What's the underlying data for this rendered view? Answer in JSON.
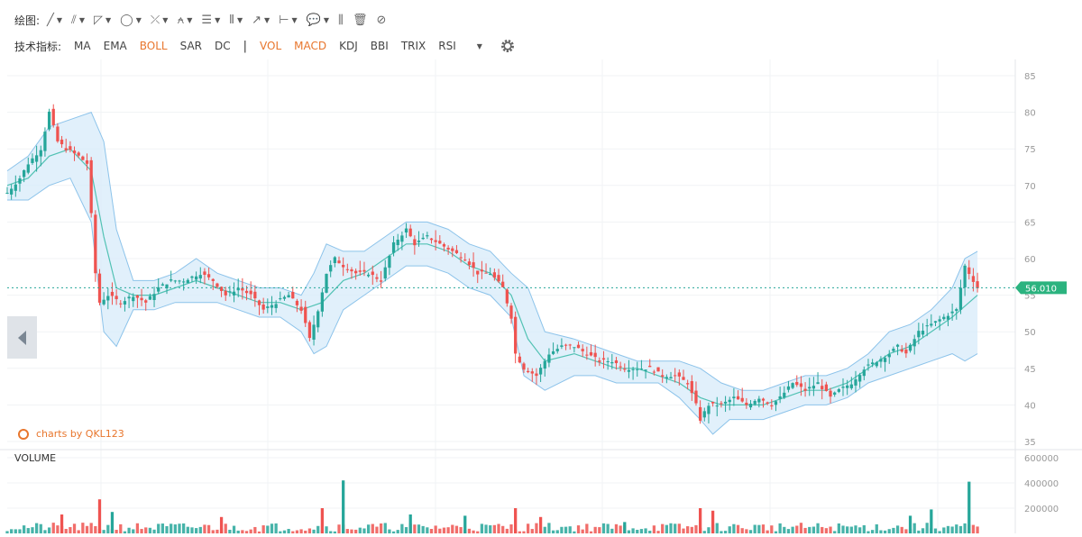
{
  "draw_toolbar": {
    "label": "绘图:",
    "tools": [
      {
        "icon": "line-icon",
        "glyph": "╱",
        "dropdown": true
      },
      {
        "icon": "pen-line-icon",
        "glyph": "⫽",
        "dropdown": true
      },
      {
        "icon": "channel-icon",
        "glyph": "◸",
        "dropdown": true
      },
      {
        "icon": "circle-icon",
        "glyph": "◯",
        "dropdown": true
      },
      {
        "icon": "zigzag-icon",
        "glyph": "⤫",
        "dropdown": true
      },
      {
        "icon": "pattern-icon",
        "glyph": "⍲",
        "dropdown": true
      },
      {
        "icon": "fibonacci-icon",
        "glyph": "☰",
        "dropdown": true
      },
      {
        "icon": "gann-icon",
        "glyph": "⦀",
        "dropdown": true
      },
      {
        "icon": "arrow-icon",
        "glyph": "↗",
        "dropdown": true
      },
      {
        "icon": "range-icon",
        "glyph": "⊢",
        "dropdown": true
      },
      {
        "icon": "comment-icon",
        "glyph": "💬",
        "dropdown": true
      },
      {
        "icon": "bars-pattern-icon",
        "glyph": "⫼",
        "dropdown": false
      },
      {
        "icon": "trash-icon",
        "glyph": "🗑",
        "dropdown": false
      },
      {
        "icon": "hide-drawings-icon",
        "glyph": "⊘",
        "dropdown": false
      }
    ]
  },
  "indicator_toolbar": {
    "label": "技术指标:",
    "main_indicators": [
      {
        "label": "MA",
        "active": false
      },
      {
        "label": "EMA",
        "active": false
      },
      {
        "label": "BOLL",
        "active": true
      },
      {
        "label": "SAR",
        "active": false
      },
      {
        "label": "DC",
        "active": false
      }
    ],
    "separator": "|",
    "sub_indicators": [
      {
        "label": "VOL",
        "active": true
      },
      {
        "label": "MACD",
        "active": true
      },
      {
        "label": "KDJ",
        "active": false
      },
      {
        "label": "BBI",
        "active": false
      },
      {
        "label": "TRIX",
        "active": false
      },
      {
        "label": "RSI",
        "active": false
      }
    ]
  },
  "watermark": "charts by QKL123",
  "colors": {
    "up": "#26a69a",
    "down": "#ef5350",
    "boll_fill": "#d7ebfa",
    "boll_band": "#8cc3ea",
    "boll_mid": "#52c2b4",
    "price_line": "#26a69a",
    "accent": "#e8762d"
  },
  "chart_data": [
    {
      "type": "candlestick",
      "title": "",
      "indicator": "BOLL",
      "y_ticks": [
        "85",
        "80",
        "75",
        "70",
        "65",
        "60",
        "55",
        "50",
        "45",
        "40",
        "35"
      ],
      "ylim": [
        35,
        85
      ],
      "current_price": "56.010",
      "grid": true,
      "price_path": [
        [
          0,
          69
        ],
        [
          3,
          71
        ],
        [
          5,
          73
        ],
        [
          8,
          75
        ],
        [
          10,
          80
        ],
        [
          12,
          76
        ],
        [
          14,
          75
        ],
        [
          17,
          74
        ],
        [
          19,
          73
        ],
        [
          20,
          66
        ],
        [
          21,
          58
        ],
        [
          22,
          54
        ],
        [
          24,
          55
        ],
        [
          27,
          54
        ],
        [
          30,
          55
        ],
        [
          33,
          54
        ],
        [
          36,
          56
        ],
        [
          39,
          57
        ],
        [
          42,
          57
        ],
        [
          46,
          58
        ],
        [
          49,
          57
        ],
        [
          52,
          55
        ],
        [
          55,
          56
        ],
        [
          58,
          55
        ],
        [
          61,
          53
        ],
        [
          64,
          54
        ],
        [
          67,
          55
        ],
        [
          70,
          53
        ],
        [
          72,
          49
        ],
        [
          74,
          53
        ],
        [
          76,
          58
        ],
        [
          78,
          60
        ],
        [
          80,
          59
        ],
        [
          83,
          58
        ],
        [
          86,
          58
        ],
        [
          89,
          57
        ],
        [
          92,
          62
        ],
        [
          95,
          64
        ],
        [
          97,
          62
        ],
        [
          100,
          63
        ],
        [
          103,
          62
        ],
        [
          106,
          61
        ],
        [
          109,
          60
        ],
        [
          112,
          58
        ],
        [
          115,
          58
        ],
        [
          118,
          56
        ],
        [
          120,
          52
        ],
        [
          121,
          47
        ],
        [
          123,
          45
        ],
        [
          126,
          44
        ],
        [
          129,
          47
        ],
        [
          132,
          48
        ],
        [
          135,
          48
        ],
        [
          138,
          47
        ],
        [
          141,
          46
        ],
        [
          144,
          46
        ],
        [
          147,
          45
        ],
        [
          150,
          45
        ],
        [
          153,
          45
        ],
        [
          156,
          44
        ],
        [
          159,
          44
        ],
        [
          162,
          43
        ],
        [
          164,
          40
        ],
        [
          165,
          38
        ],
        [
          167,
          40
        ],
        [
          170,
          40
        ],
        [
          173,
          41
        ],
        [
          176,
          40
        ],
        [
          179,
          41
        ],
        [
          182,
          40
        ],
        [
          184,
          41
        ],
        [
          187,
          43
        ],
        [
          190,
          42
        ],
        [
          193,
          43
        ],
        [
          196,
          41
        ],
        [
          198,
          42
        ],
        [
          201,
          43
        ],
        [
          204,
          45
        ],
        [
          207,
          46
        ],
        [
          210,
          47
        ],
        [
          212,
          48
        ],
        [
          214,
          47
        ],
        [
          217,
          50
        ],
        [
          220,
          51
        ],
        [
          223,
          52
        ],
        [
          226,
          53
        ],
        [
          228,
          59
        ],
        [
          230,
          57
        ],
        [
          231,
          56
        ]
      ],
      "boll_mid_path": [
        [
          0,
          70
        ],
        [
          5,
          71
        ],
        [
          10,
          74
        ],
        [
          15,
          75
        ],
        [
          20,
          72
        ],
        [
          23,
          63
        ],
        [
          26,
          56
        ],
        [
          30,
          55
        ],
        [
          35,
          55
        ],
        [
          40,
          56
        ],
        [
          45,
          57
        ],
        [
          50,
          56
        ],
        [
          55,
          55
        ],
        [
          60,
          54
        ],
        [
          65,
          54
        ],
        [
          70,
          53
        ],
        [
          75,
          54
        ],
        [
          80,
          57
        ],
        [
          85,
          58
        ],
        [
          90,
          60
        ],
        [
          95,
          62
        ],
        [
          100,
          62
        ],
        [
          105,
          61
        ],
        [
          110,
          59
        ],
        [
          115,
          58
        ],
        [
          120,
          55
        ],
        [
          124,
          49
        ],
        [
          128,
          46
        ],
        [
          135,
          47
        ],
        [
          140,
          46
        ],
        [
          145,
          45
        ],
        [
          150,
          45
        ],
        [
          155,
          44
        ],
        [
          160,
          43
        ],
        [
          165,
          41
        ],
        [
          170,
          40
        ],
        [
          175,
          40
        ],
        [
          180,
          40
        ],
        [
          185,
          41
        ],
        [
          190,
          42
        ],
        [
          195,
          42
        ],
        [
          200,
          43
        ],
        [
          205,
          45
        ],
        [
          210,
          47
        ],
        [
          215,
          48
        ],
        [
          220,
          50
        ],
        [
          225,
          52
        ],
        [
          231,
          55
        ]
      ],
      "boll_upper_path": [
        [
          0,
          72
        ],
        [
          5,
          74
        ],
        [
          10,
          78
        ],
        [
          15,
          79
        ],
        [
          20,
          80
        ],
        [
          23,
          76
        ],
        [
          26,
          64
        ],
        [
          30,
          57
        ],
        [
          35,
          57
        ],
        [
          40,
          58
        ],
        [
          45,
          60
        ],
        [
          50,
          58
        ],
        [
          55,
          57
        ],
        [
          60,
          56
        ],
        [
          65,
          56
        ],
        [
          70,
          55
        ],
        [
          73,
          58
        ],
        [
          76,
          62
        ],
        [
          80,
          61
        ],
        [
          85,
          61
        ],
        [
          90,
          63
        ],
        [
          95,
          65
        ],
        [
          100,
          65
        ],
        [
          105,
          64
        ],
        [
          110,
          62
        ],
        [
          115,
          61
        ],
        [
          120,
          58
        ],
        [
          124,
          56
        ],
        [
          128,
          50
        ],
        [
          135,
          49
        ],
        [
          140,
          48
        ],
        [
          145,
          47
        ],
        [
          150,
          46
        ],
        [
          155,
          46
        ],
        [
          160,
          46
        ],
        [
          165,
          45
        ],
        [
          170,
          43
        ],
        [
          175,
          42
        ],
        [
          180,
          42
        ],
        [
          185,
          43
        ],
        [
          190,
          44
        ],
        [
          195,
          44
        ],
        [
          200,
          45
        ],
        [
          205,
          47
        ],
        [
          210,
          50
        ],
        [
          215,
          51
        ],
        [
          220,
          53
        ],
        [
          225,
          56
        ],
        [
          228,
          60
        ],
        [
          231,
          61
        ]
      ],
      "boll_lower_path": [
        [
          0,
          68
        ],
        [
          5,
          68
        ],
        [
          10,
          70
        ],
        [
          15,
          71
        ],
        [
          20,
          65
        ],
        [
          23,
          50
        ],
        [
          26,
          48
        ],
        [
          30,
          53
        ],
        [
          35,
          53
        ],
        [
          40,
          54
        ],
        [
          45,
          54
        ],
        [
          50,
          54
        ],
        [
          55,
          53
        ],
        [
          60,
          52
        ],
        [
          65,
          52
        ],
        [
          70,
          50
        ],
        [
          73,
          47
        ],
        [
          76,
          48
        ],
        [
          80,
          53
        ],
        [
          85,
          55
        ],
        [
          90,
          57
        ],
        [
          95,
          59
        ],
        [
          100,
          59
        ],
        [
          105,
          58
        ],
        [
          110,
          56
        ],
        [
          115,
          55
        ],
        [
          120,
          52
        ],
        [
          123,
          44
        ],
        [
          128,
          42
        ],
        [
          135,
          44
        ],
        [
          140,
          44
        ],
        [
          145,
          43
        ],
        [
          150,
          43
        ],
        [
          155,
          43
        ],
        [
          160,
          41
        ],
        [
          165,
          38
        ],
        [
          168,
          36
        ],
        [
          172,
          38
        ],
        [
          175,
          38
        ],
        [
          180,
          38
        ],
        [
          185,
          39
        ],
        [
          190,
          40
        ],
        [
          195,
          40
        ],
        [
          200,
          41
        ],
        [
          205,
          43
        ],
        [
          210,
          44
        ],
        [
          215,
          45
        ],
        [
          220,
          46
        ],
        [
          225,
          47
        ],
        [
          228,
          46
        ],
        [
          231,
          47
        ]
      ]
    },
    {
      "type": "bar",
      "title": "VOLUME",
      "y_ticks": [
        "600000",
        "400000",
        "200000"
      ],
      "ylim": [
        0,
        600000
      ],
      "spikes": [
        {
          "x": 13,
          "value": 150000,
          "dir": "down"
        },
        {
          "x": 22,
          "value": 270000,
          "dir": "down"
        },
        {
          "x": 25,
          "value": 170000,
          "dir": "up"
        },
        {
          "x": 51,
          "value": 130000,
          "dir": "down"
        },
        {
          "x": 75,
          "value": 200000,
          "dir": "down"
        },
        {
          "x": 80,
          "value": 420000,
          "dir": "up"
        },
        {
          "x": 96,
          "value": 150000,
          "dir": "up"
        },
        {
          "x": 109,
          "value": 140000,
          "dir": "up"
        },
        {
          "x": 121,
          "value": 200000,
          "dir": "down"
        },
        {
          "x": 127,
          "value": 130000,
          "dir": "down"
        },
        {
          "x": 147,
          "value": 90000,
          "dir": "up"
        },
        {
          "x": 165,
          "value": 200000,
          "dir": "down"
        },
        {
          "x": 168,
          "value": 180000,
          "dir": "down"
        },
        {
          "x": 215,
          "value": 140000,
          "dir": "up"
        },
        {
          "x": 220,
          "value": 190000,
          "dir": "up"
        },
        {
          "x": 229,
          "value": 410000,
          "dir": "up"
        }
      ]
    }
  ]
}
